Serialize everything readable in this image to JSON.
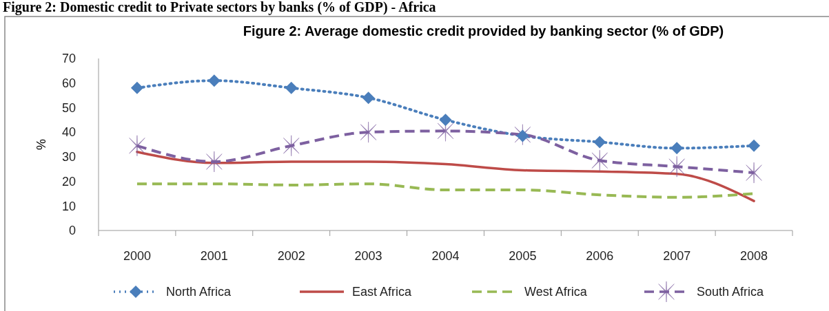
{
  "chart_data": {
    "type": "line",
    "title": "Figure 2: Average domestic credit provided by banking sector (% of GDP)",
    "ylabel": "%",
    "annotations": [
      "Figure 2: Domestic credit to Private sectors by banks (% of GDP) - Africa"
    ],
    "categories": [
      "2000",
      "2001",
      "2002",
      "2003",
      "2004",
      "2005",
      "2006",
      "2007",
      "2008"
    ],
    "ylim": [
      0,
      70
    ],
    "yticks": [
      0,
      10,
      20,
      30,
      40,
      50,
      60,
      70
    ],
    "grid": false,
    "legend": "bottom",
    "series": [
      {
        "name": "North Africa",
        "color": "#4a7ebb",
        "marker": "diamond",
        "line_style": "dotted",
        "values": [
          58,
          61,
          58,
          54,
          45,
          38.5,
          36,
          33.5,
          34.5
        ]
      },
      {
        "name": "East Africa",
        "color": "#be4b48",
        "marker": "none",
        "line_style": "solid",
        "values": [
          32,
          27.5,
          28,
          28,
          27,
          24.5,
          24,
          23,
          12
        ]
      },
      {
        "name": "West Africa",
        "color": "#98b954",
        "marker": "none",
        "line_style": "dashed",
        "values": [
          19,
          19,
          18.5,
          19,
          16.5,
          16.5,
          14.5,
          13.5,
          15
        ]
      },
      {
        "name": "South Africa",
        "color": "#7d60a0",
        "marker": "cross",
        "line_style": "dashed",
        "values": [
          34.5,
          28,
          34.5,
          40,
          40.5,
          39,
          28.5,
          26,
          23.5
        ]
      }
    ]
  }
}
